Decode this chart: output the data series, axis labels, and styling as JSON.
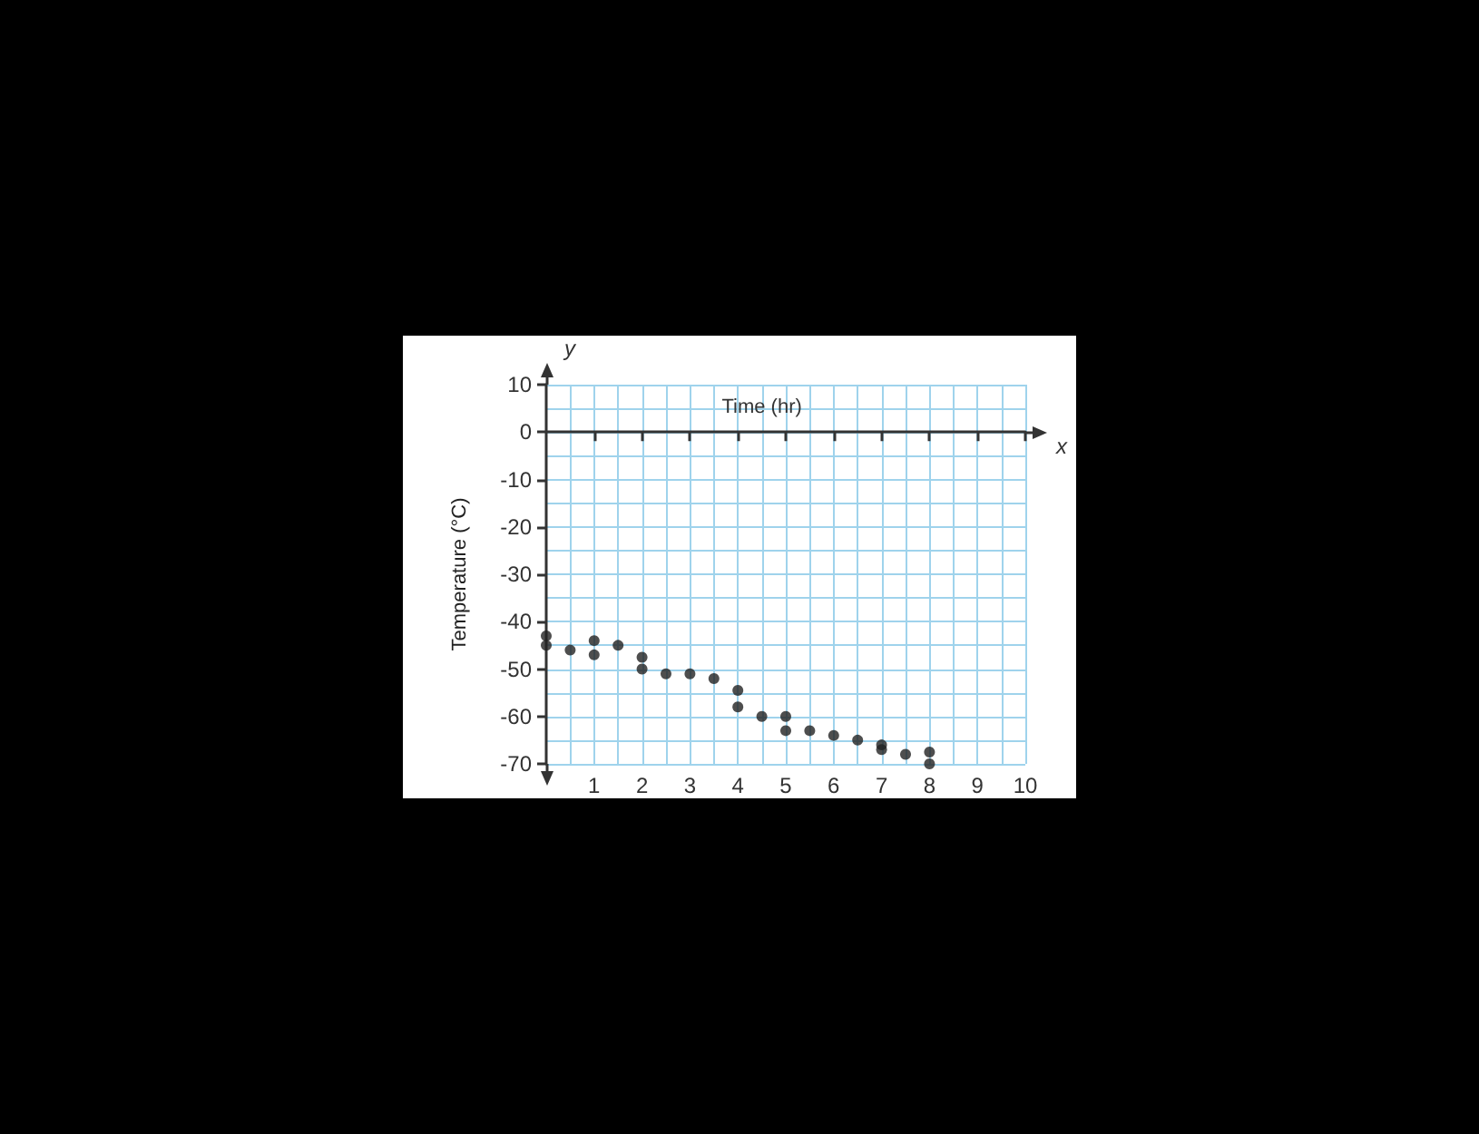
{
  "chart_data": {
    "type": "scatter",
    "xlabel": "Time (hr)",
    "ylabel": "Temperature (°C)",
    "annotations": [
      "x",
      "y"
    ],
    "series": [
      {
        "color": "#222222",
        "x": [
          0,
          0,
          0.5,
          1,
          1,
          1.5,
          2,
          2,
          2.5,
          3,
          3.5,
          4,
          4,
          4.5,
          5,
          5,
          5.5,
          6,
          6.5,
          7,
          7,
          7.5,
          8,
          8
        ],
        "values": [
          -43,
          -45,
          -46,
          -44,
          -47,
          -45,
          -47.5,
          -50,
          -51,
          -51,
          -52,
          -54.5,
          -58,
          -60,
          -60,
          -63,
          -63,
          -64,
          -65,
          -66,
          -67,
          -68,
          -67.5,
          -70
        ]
      }
    ],
    "xlim": [
      0,
      10
    ],
    "ylim": [
      -70,
      10
    ],
    "xticks": [
      1,
      2,
      3,
      4,
      5,
      6,
      7,
      8,
      9,
      10
    ],
    "yticks": [
      -70,
      -60,
      -50,
      -40,
      -30,
      -20,
      -10,
      0,
      10
    ],
    "grid": true,
    "marker": "circle"
  }
}
